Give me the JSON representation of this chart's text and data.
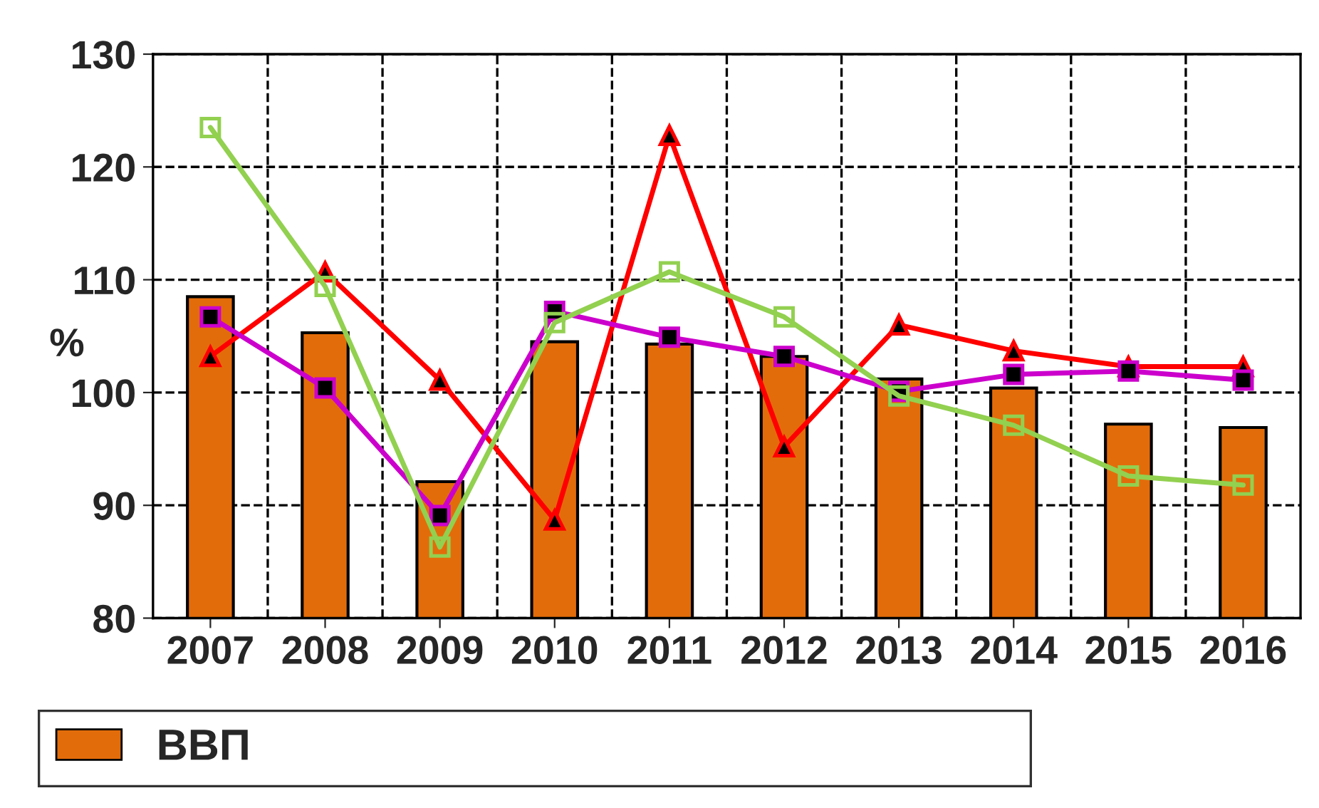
{
  "chart_data": {
    "type": "bar",
    "ylabel": "%",
    "categories": [
      "2007",
      "2008",
      "2009",
      "2010",
      "2011",
      "2012",
      "2013",
      "2014",
      "2015",
      "2016"
    ],
    "series": [
      {
        "name": "ВВП",
        "color": "#e36c0a",
        "values": [
          108.5,
          105.3,
          92.1,
          104.5,
          104.3,
          103.2,
          101.2,
          100.4,
          97.2,
          96.9
        ]
      },
      {
        "type": "line",
        "color": "#ff0000",
        "marker": "triangle",
        "values": [
          103.2,
          110.7,
          101.1,
          88.7,
          122.8,
          95.2,
          106.0,
          103.7,
          102.3,
          102.3
        ]
      },
      {
        "type": "line",
        "color": "#cc00cc",
        "marker": "square",
        "values": [
          106.7,
          100.4,
          89.1,
          107.2,
          104.9,
          103.2,
          100.1,
          101.6,
          101.9,
          101.1
        ]
      },
      {
        "type": "line",
        "color": "#92d050",
        "marker": "square",
        "values": [
          123.5,
          109.4,
          86.3,
          106.2,
          110.7,
          106.7,
          99.7,
          97.1,
          92.6,
          91.8
        ]
      }
    ],
    "ylim": [
      80,
      130
    ],
    "yticks": [
      80,
      90,
      100,
      110,
      120,
      130
    ],
    "grid": true,
    "legend": "bottom"
  }
}
